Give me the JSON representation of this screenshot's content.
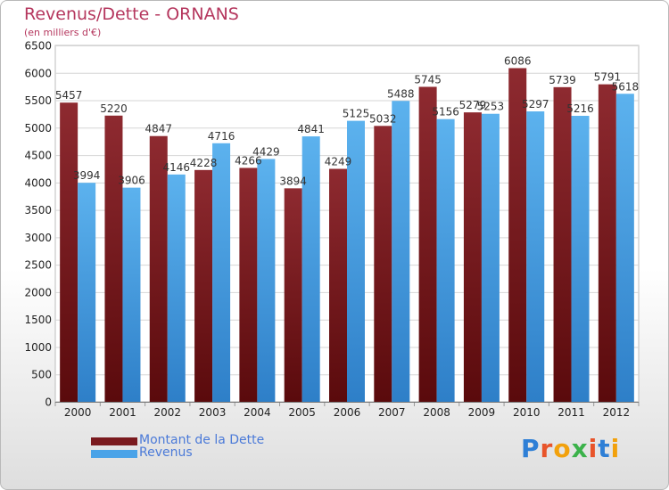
{
  "chart_data": {
    "type": "bar",
    "title": "Revenus/Dette - ORNANS",
    "subtitle": "(en milliers d'€)",
    "categories": [
      "2000",
      "2001",
      "2002",
      "2003",
      "2004",
      "2005",
      "2006",
      "2007",
      "2008",
      "2009",
      "2010",
      "2011",
      "2012"
    ],
    "series": [
      {
        "name": "Montant de la Dette",
        "color": "#7a1a1e",
        "values": [
          5457,
          5220,
          4847,
          4228,
          4266,
          3894,
          4249,
          5032,
          5745,
          5279,
          6086,
          5739,
          5791
        ]
      },
      {
        "name": "Revenus",
        "color": "#4aa3e8",
        "values": [
          3994,
          3906,
          4146,
          4716,
          4429,
          4841,
          5125,
          5488,
          5156,
          5253,
          5297,
          5216,
          5618
        ]
      }
    ],
    "ylim": [
      0,
      6500
    ],
    "yticks": [
      0,
      500,
      1000,
      1500,
      2000,
      2500,
      3000,
      3500,
      4000,
      4500,
      5000,
      5500,
      6000,
      6500
    ],
    "grid": true,
    "legend_position": "bottom-left"
  },
  "logo": {
    "text": "Proxiti",
    "colors": [
      "#2e7fd6",
      "#e8542a",
      "#f2a10c",
      "#3bb24a",
      "#e8542a",
      "#2e7fd6",
      "#f2a10c"
    ]
  }
}
